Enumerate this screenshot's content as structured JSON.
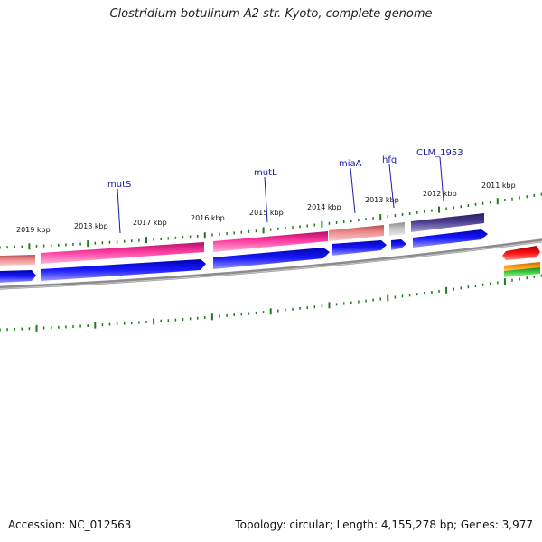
{
  "header": {
    "title": "Clostridium botulinum A2 str. Kyoto, complete genome"
  },
  "footer": {
    "accession": "Accession: NC_012563",
    "summary": "Topology: circular; Length: 4,155,278 bp; Genes: 3,977"
  },
  "ruler": {
    "labels": [
      "2019 kbp",
      "2018 kbp",
      "2017 kbp",
      "2016 kbp",
      "2015 kbp",
      "2014 kbp",
      "2013 kbp",
      "2012 kbp",
      "2011 kbp"
    ]
  },
  "genes": {
    "labels": [
      "mutS",
      "mutL",
      "miaA",
      "hfq",
      "CLM_1953"
    ]
  },
  "colors": {
    "forward_cds_pink": "#ee1f8a",
    "forward_cds_salmon": "#e07a7a",
    "forward_cds_gray": "#b0b0b0",
    "forward_cds_purple": "#3b2f7a",
    "reverse_cds_blue": "#1010e8",
    "backbone": "#808080",
    "tick": "#1f7a1f",
    "label_line": "#1a1aaa",
    "feature_red": "#e00000",
    "feature_orange": "#f08c00",
    "feature_green": "#2fb82f"
  }
}
